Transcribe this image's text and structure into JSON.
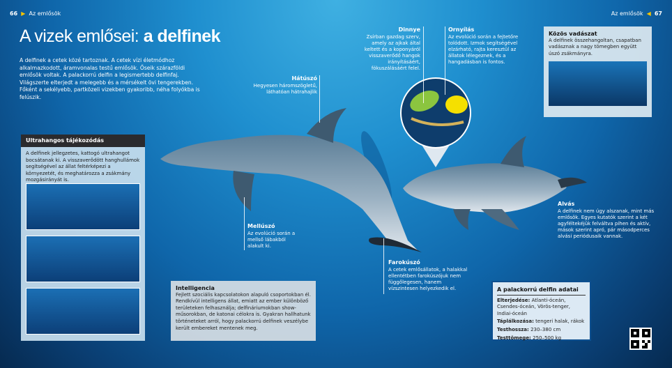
{
  "header_left": {
    "page": "66",
    "section": "Az emlősök"
  },
  "header_right": {
    "page": "67",
    "section": "Az emlősök"
  },
  "title": {
    "part1": "A vizek emlősei:",
    "part2": "a delfinek"
  },
  "intro": "A delfinek a cetek közé tartoznak. A cetek vízi életmódhoz alkalmazkodott, áramvonalas testű emlősök. Őseik szárazföldi emlősök voltak. A palackorrú delfin a legismertebb delfinfaj. Világszerte elterjedt a melegebb és a mérsékelt övi tengerekben. Főként a sekélyebb, partközeli vizekben gyakoribb, néha folyókba is felúszik.",
  "ultrasound": {
    "title": "Ultrahangos tájékozódás",
    "text": "A delfinek jellegzetes, kattogó ultrahangot bocsátanak ki. A visszaverődött hanghullámok segítségével az állat feltérképezi a környezetét, és meghatározza a zsákmány mozgásirányát is."
  },
  "labels": {
    "dorsal": {
      "title": "Hátúszó",
      "text": "Hegyesen háromszögletű, láthatóan hátrahajlik"
    },
    "melon": {
      "title": "Dinnye",
      "text": "Zsírban gazdag szerv, amely az ajkak által keltett és a koponyáról visszaverődő hangok irányításáért, fókuszálásáért felel."
    },
    "blowhole": {
      "title": "Ornyílás",
      "text": "Az evolúció során a fejtetőre tolódott. Izmok segítségével elzárható, rajta keresztül az állatok lélegeznek, és a hangadásban is fontos."
    },
    "flipper": {
      "title": "Mellúszó",
      "text": "Az evolúció során a mellső lábakból alakult ki."
    },
    "tail": {
      "title": "Farokúszó",
      "text": "A cetek emlősállatok, a halakkal ellentétben farokúszójuk nem függőlegesen, hanem vízszintesen helyezkedik el."
    },
    "sleep": {
      "title": "Alvás",
      "text": "A delfinek nem úgy alszanak, mint más emlősök. Egyes kutatók szerint a két agyféltekéjük felváltva pihen és aktív, mások szerint apró, pár másodperces alvási periódusaik vannak."
    }
  },
  "hunting": {
    "title": "Közös vadászat",
    "text": "A delfinek összehangoltan, csapatban vadásznak a nagy tömegben együtt úszó zsákmányra."
  },
  "intelligence": {
    "title": "Intelligencia",
    "text": "Fejlett szociális kapcsolatokon alapuló csoportokban él. Rendkívül intelligens állat, emiatt az ember különböző területeken felhasználja; delfináriumokban show-műsorokban, de katonai célokra is. Gyakran hallhatunk történeteket arról, hogy palackorrú delfinek veszélybe került embereket mentenek meg."
  },
  "facts": {
    "title": "A palackorrú delfin adatai",
    "items": [
      {
        "k": "Elterjedése:",
        "v": "Atlanti-óceán, Csendes-óceán, Vörös-tenger, Indiai-óceán"
      },
      {
        "k": "Táplálkozása:",
        "v": "tengeri halak, rákok"
      },
      {
        "k": "Testhossza:",
        "v": "230–380 cm"
      },
      {
        "k": "Testtömege:",
        "v": "250–500 kg"
      }
    ]
  },
  "colors": {
    "accent": "#f5c400",
    "melon": "#8bc53f",
    "blowhole": "#f5e000",
    "header_bar": "#2b2b2e",
    "facts_border": "#0d4f8f"
  }
}
